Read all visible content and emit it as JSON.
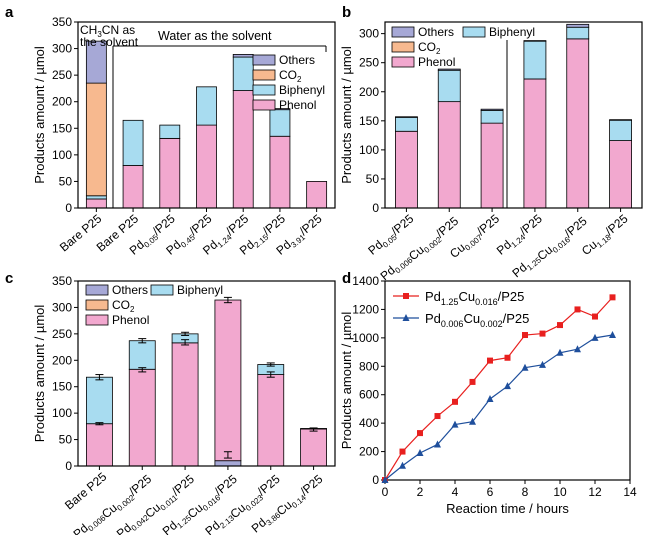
{
  "colors": {
    "phenol": "#f2a8cf",
    "biphenyl": "#a8dcf0",
    "co2": "#f7b98f",
    "others": "#a6a8d6",
    "red_series": "#e8201f",
    "blue_series": "#1f4f9c",
    "axis": "#000000"
  },
  "chart_data": [
    {
      "panel": "a",
      "type": "bar",
      "stacked": true,
      "title": "",
      "ylabel": "Products amount / µmol",
      "ylim": [
        0,
        350
      ],
      "yticks": [
        "0",
        "50",
        "100",
        "150",
        "200",
        "250",
        "300",
        "350"
      ],
      "annotations": [
        {
          "id": "ch3cn",
          "text": "CH₃CN as the solvent"
        },
        {
          "id": "water",
          "text": "Water as the solvent"
        }
      ],
      "legend": [
        "Others",
        "CO₂",
        "Biphenyl",
        "Phenol"
      ],
      "categories": [
        {
          "main": "Bare P25",
          "sub": "",
          "tail": ""
        },
        {
          "main": "Bare P25",
          "sub": "",
          "tail": ""
        },
        {
          "main": "Pd",
          "sub": "0.05",
          "tail": "/P25"
        },
        {
          "main": "Pd",
          "sub": "0.45",
          "tail": "/P25"
        },
        {
          "main": "Pd",
          "sub": "1.24",
          "tail": "/P25"
        },
        {
          "main": "Pd",
          "sub": "2.15",
          "tail": "/P25"
        },
        {
          "main": "Pd",
          "sub": "3.91",
          "tail": "/P25"
        }
      ],
      "series": [
        {
          "name": "Phenol",
          "values": [
            17,
            80,
            131,
            156,
            221,
            135,
            50
          ]
        },
        {
          "name": "Biphenyl",
          "values": [
            6,
            85,
            25,
            72,
            63,
            50,
            0
          ]
        },
        {
          "name": "CO₂",
          "values": [
            212,
            0,
            0,
            0,
            0,
            0,
            0
          ]
        },
        {
          "name": "Others",
          "values": [
            79,
            0,
            0,
            0,
            5,
            2,
            0
          ]
        }
      ]
    },
    {
      "panel": "b",
      "type": "bar",
      "stacked": true,
      "title": "",
      "ylabel": "Products amount / µmol",
      "ylim": [
        0,
        320
      ],
      "yticks": [
        "0",
        "50",
        "100",
        "150",
        "200",
        "250",
        "300"
      ],
      "legend": [
        "Others",
        "Biphenyl",
        "CO₂",
        "Phenol"
      ],
      "categories": [
        {
          "lines": [
            [
              "Pd",
              "0.05",
              "/P25"
            ]
          ]
        },
        {
          "lines": [
            [
              "Pd",
              "0.006",
              ""
            ],
            [
              "Cu",
              "0.002",
              "/P25"
            ]
          ]
        },
        {
          "lines": [
            [
              "Cu",
              "0.007",
              "/P25"
            ]
          ]
        },
        {
          "lines": [
            [
              "Pd",
              "1.24",
              "/P25"
            ]
          ]
        },
        {
          "lines": [
            [
              "Pd",
              "1.25",
              ""
            ],
            [
              "Cu",
              "0.016",
              "/P25"
            ]
          ]
        },
        {
          "lines": [
            [
              "Cu",
              "1.18",
              "/P25"
            ]
          ]
        }
      ],
      "series": [
        {
          "name": "Phenol",
          "values": [
            132,
            183,
            146,
            222,
            291,
            116
          ]
        },
        {
          "name": "Biphenyl",
          "values": [
            24,
            54,
            22,
            65,
            20,
            35
          ]
        },
        {
          "name": "CO₂",
          "values": [
            0,
            0,
            0,
            0,
            0,
            0
          ]
        },
        {
          "name": "Others",
          "values": [
            1,
            2,
            2,
            1,
            5,
            1
          ]
        }
      ]
    },
    {
      "panel": "c",
      "type": "bar",
      "stacked": true,
      "error_bars": true,
      "title": "",
      "ylabel": "Products amount / µmol",
      "ylim": [
        0,
        350
      ],
      "yticks": [
        "0",
        "50",
        "100",
        "150",
        "200",
        "250",
        "300",
        "350"
      ],
      "legend": [
        "Others",
        "Biphenyl",
        "CO₂",
        "Phenol"
      ],
      "categories": [
        {
          "lines": [
            [
              "Bare P25",
              "",
              ""
            ]
          ]
        },
        {
          "lines": [
            [
              "Pd",
              "0.006",
              ""
            ],
            [
              "Cu",
              "0.002",
              "/P25"
            ]
          ]
        },
        {
          "lines": [
            [
              "Pd",
              "0.042",
              ""
            ],
            [
              "Cu",
              "0.011",
              "/P25"
            ]
          ]
        },
        {
          "lines": [
            [
              "Pd",
              "1.25",
              ""
            ],
            [
              "Cu",
              "0.016",
              "/P25"
            ]
          ]
        },
        {
          "lines": [
            [
              "Pd",
              "2.13",
              ""
            ],
            [
              "Cu",
              "0.023",
              "/P25"
            ]
          ]
        },
        {
          "lines": [
            [
              "Pd",
              "3.86",
              ""
            ],
            [
              "Cu",
              "0.14",
              "/P25"
            ]
          ]
        }
      ],
      "series": [
        {
          "name": "Others",
          "values": [
            0,
            0,
            0,
            10,
            0,
            0
          ]
        },
        {
          "name": "Phenol",
          "values": [
            80,
            183,
            233,
            304,
            173,
            70
          ]
        },
        {
          "name": "Biphenyl",
          "values": [
            88,
            54,
            17,
            0,
            19,
            0
          ]
        },
        {
          "name": "CO₂",
          "values": [
            0,
            0,
            0,
            0,
            0,
            0
          ]
        },
        {
          "name": "Others",
          "values": [
            0,
            0,
            0,
            0,
            0,
            1
          ]
        }
      ],
      "error_bars_at": [
        {
          "value": 168,
          "err": 5
        },
        {
          "value": 80,
          "err": 2
        },
        {
          "value": 237,
          "err": 4
        },
        {
          "value": 182,
          "err": 4
        },
        {
          "value": 250,
          "err": 3
        },
        {
          "value": 234,
          "err": 5
        },
        {
          "value": 314,
          "err": 5
        },
        {
          "value": 21,
          "err": 6
        },
        {
          "value": 192,
          "err": 3
        },
        {
          "value": 173,
          "err": 5
        },
        {
          "value": 71,
          "err": 1
        },
        {
          "value": 68,
          "err": 2
        }
      ]
    },
    {
      "panel": "d",
      "type": "line",
      "title": "",
      "xlabel": "Reaction time / hours",
      "ylabel": "Products amount / µmol",
      "xlim": [
        0,
        14
      ],
      "ylim": [
        0,
        1400
      ],
      "xticks": [
        "0",
        "2",
        "4",
        "6",
        "8",
        "10",
        "12",
        "14"
      ],
      "yticks": [
        "0",
        "200",
        "400",
        "600",
        "800",
        "1000",
        "1200",
        "1400"
      ],
      "series": [
        {
          "name": "Pd1.25Cu0.016/P25",
          "label": [
            "Pd",
            "1.25",
            "Cu",
            "0.016",
            "/P25"
          ],
          "marker": "square",
          "color_key": "red_series",
          "x": [
            0,
            1,
            2,
            3,
            4,
            5,
            6,
            7,
            8,
            9,
            10,
            11,
            12,
            13
          ],
          "y": [
            0,
            200,
            330,
            450,
            550,
            690,
            840,
            860,
            1020,
            1030,
            1090,
            1200,
            1150,
            1285
          ]
        },
        {
          "name": "Pd0.006Cu0.002/P25",
          "label": [
            "Pd",
            "0.006",
            "Cu",
            "0.002",
            "/P25"
          ],
          "marker": "triangle",
          "color_key": "blue_series",
          "x": [
            0,
            1,
            2,
            3,
            4,
            5,
            6,
            7,
            8,
            9,
            10,
            11,
            12,
            13
          ],
          "y": [
            0,
            100,
            190,
            250,
            390,
            410,
            570,
            660,
            790,
            810,
            895,
            920,
            1000,
            1020
          ]
        }
      ]
    }
  ],
  "panel_labels": [
    "a",
    "b",
    "c",
    "d"
  ]
}
